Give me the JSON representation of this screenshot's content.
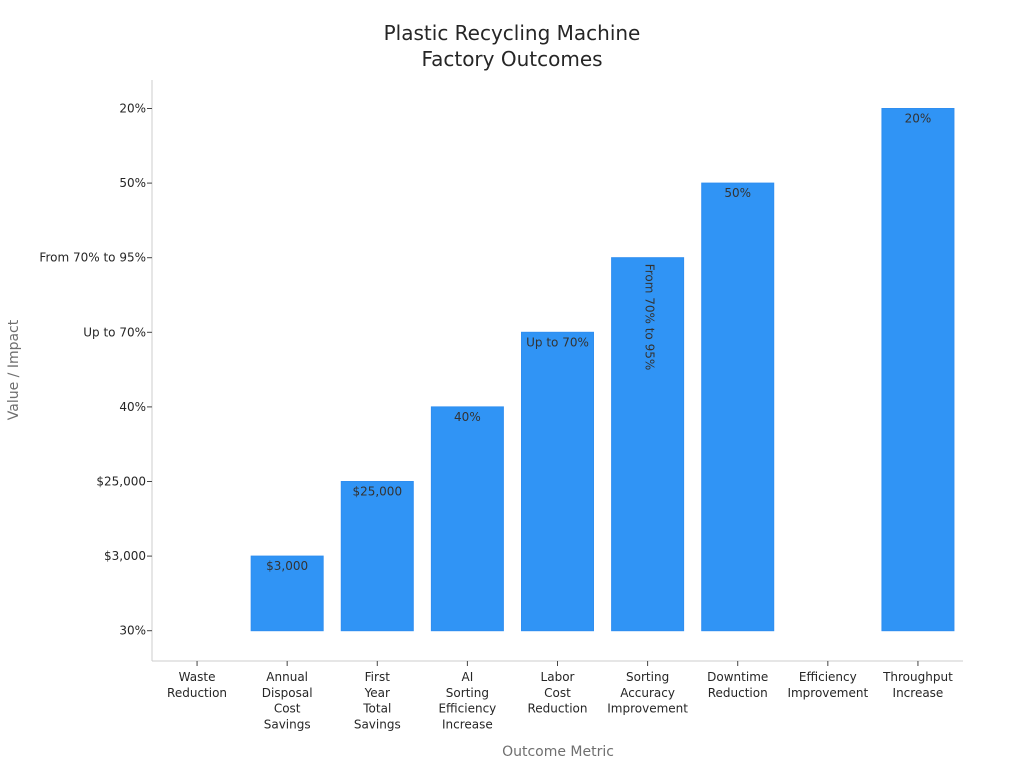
{
  "chart_data": {
    "type": "bar",
    "title": "Plastic Recycling Machine\nFactory Outcomes",
    "xlabel": "Outcome Metric",
    "ylabel": "Value / Impact",
    "y_axis_type": "category",
    "y_categories": [
      "30%",
      "$3,000",
      "$25,000",
      "40%",
      "Up to 70%",
      "From 70% to 95%",
      "50%",
      "20%"
    ],
    "categories": [
      "Waste\nReduction",
      "Annual\nDisposal\nCost\nSavings",
      "First\nYear\nTotal\nSavings",
      "AI\nSorting\nEfficiency\nIncrease",
      "Labor\nCost\nReduction",
      "Sorting\nAccuracy\nImprovement",
      "Downtime\nReduction",
      "Efficiency\nImprovement",
      "Throughput\nIncrease"
    ],
    "values": [
      "30%",
      "$3,000",
      "$25,000",
      "40%",
      "Up to 70%",
      "From 70% to 95%",
      "50%",
      "30%",
      "20%"
    ],
    "grid": false,
    "colors": {
      "bar": "#3094f5",
      "bar_edge": "#2f8ef0"
    }
  }
}
